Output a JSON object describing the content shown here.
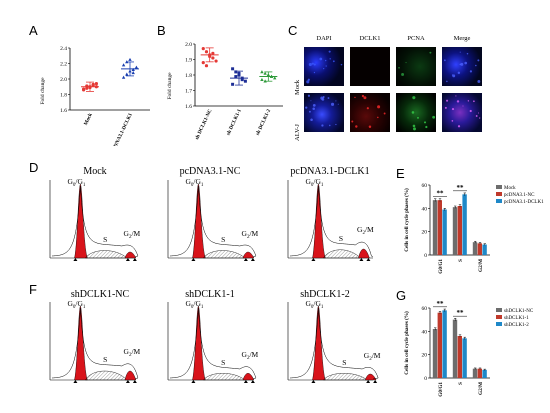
{
  "panel_labels": {
    "A": "A",
    "B": "B",
    "C": "C",
    "D": "D",
    "E": "E",
    "F": "F",
    "G": "G"
  },
  "colors": {
    "mock_red": "#e53935",
    "oe_blue": "#1a3fb0",
    "sh_nc_red": "#e53935",
    "sh1_navy": "#1e2f96",
    "sh2_green": "#2e9a3a",
    "bar_gray": "#6d6d6d",
    "bar_red": "#c0392b",
    "bar_blue": "#1e88c8",
    "hist_red": "#d8141b"
  },
  "panel_a": {
    "ylabel": "Fold change",
    "yticks": [
      "1.6",
      "1.8",
      "2.0",
      "2.2",
      "2.4"
    ],
    "groups": [
      "Mock",
      "pcDNA3.1-DCLK1"
    ],
    "chart_data": {
      "type": "scatter",
      "ylim": [
        1.6,
        2.4
      ],
      "series": [
        {
          "name": "Mock",
          "values": [
            1.86,
            1.88,
            1.9,
            1.92,
            1.94,
            1.87,
            1.91,
            1.89,
            1.93,
            1.9
          ],
          "mean": 1.9,
          "sem": 0.02
        },
        {
          "name": "pcDNA3.1-DCLK1",
          "values": [
            2.02,
            2.06,
            2.1,
            2.12,
            2.15,
            2.18,
            2.22,
            2.25,
            2.08
          ],
          "mean": 2.13,
          "sem": 0.03
        }
      ]
    }
  },
  "panel_b": {
    "ylabel": "Fold change",
    "yticks": [
      "1.6",
      "1.7",
      "1.8",
      "1.9",
      "2.0"
    ],
    "groups": [
      "sh DCLK1-NC",
      "sh DCLK1-1",
      "sh DCLK1-2"
    ],
    "chart_data": {
      "type": "scatter",
      "ylim": [
        1.6,
        2.0
      ],
      "series": [
        {
          "name": "sh DCLK1-NC",
          "values": [
            1.97,
            1.95,
            1.93,
            1.91,
            1.89,
            1.88,
            1.86,
            1.92,
            1.94
          ],
          "mean": 1.93,
          "sem": 0.015
        },
        {
          "name": "sh DCLK1-1",
          "values": [
            1.84,
            1.82,
            1.8,
            1.78,
            1.76,
            1.74,
            1.79,
            1.81,
            1.77
          ],
          "mean": 1.78,
          "sem": 0.015
        },
        {
          "name": "sh DCLK1-2",
          "values": [
            1.82,
            1.81,
            1.8,
            1.79,
            1.78,
            1.77,
            1.76,
            1.8,
            1.79
          ],
          "mean": 1.79,
          "sem": 0.01
        }
      ]
    }
  },
  "panel_c": {
    "columns": [
      "DAPI",
      "DCLK1",
      "PCNA",
      "Merge"
    ],
    "rows": [
      "Mock",
      "ALV-J"
    ]
  },
  "panel_d": {
    "titles": [
      "Mock",
      "pcDNA3.1-NC",
      "pcDNA3.1-DCLK1"
    ],
    "peak_labels": {
      "g0g1": "G",
      "g0g1_sub": "0",
      "g0g1_sub2": "1",
      "s": "S",
      "g2m": "G",
      "g2m_sub": "2",
      "g2m_rest": "/M"
    }
  },
  "panel_e": {
    "ylabel": "Cells in cell cycle phases (%)",
    "yticks": [
      "0",
      "20",
      "40",
      "60"
    ],
    "sig": "**",
    "chart_data": {
      "type": "bar",
      "categories": [
        "G0/G1",
        "S",
        "G2/M"
      ],
      "ylim": [
        0,
        60
      ],
      "series": [
        {
          "name": "Mock",
          "values": [
            47,
            41,
            11
          ],
          "err": [
            1.2,
            1.0,
            0.8
          ]
        },
        {
          "name": "pcDNA3.1-NC",
          "values": [
            47,
            42,
            10
          ],
          "err": [
            1.2,
            1.1,
            0.8
          ]
        },
        {
          "name": "pcDNA3.1-DCLK1",
          "values": [
            39,
            52,
            9
          ],
          "err": [
            1.0,
            1.2,
            0.7
          ]
        }
      ]
    }
  },
  "panel_f": {
    "titles": [
      "shDCLK1-NC",
      "shDCLK1-1",
      "shDCLK1-2"
    ]
  },
  "panel_g": {
    "ylabel": "Cells in cell cycle phases (%)",
    "yticks": [
      "0",
      "20",
      "40",
      "60"
    ],
    "sig": "**",
    "chart_data": {
      "type": "bar",
      "categories": [
        "G0/G1",
        "S",
        "G2/M"
      ],
      "ylim": [
        0,
        60
      ],
      "series": [
        {
          "name": "shDCLK1-NC",
          "values": [
            42,
            50,
            8
          ],
          "err": [
            1.0,
            1.2,
            0.6
          ]
        },
        {
          "name": "shDCLK1-1",
          "values": [
            56,
            36,
            8
          ],
          "err": [
            1.1,
            1.0,
            0.6
          ]
        },
        {
          "name": "shDCLK1-2",
          "values": [
            58,
            34,
            7
          ],
          "err": [
            1.1,
            1.0,
            0.6
          ]
        }
      ]
    }
  }
}
